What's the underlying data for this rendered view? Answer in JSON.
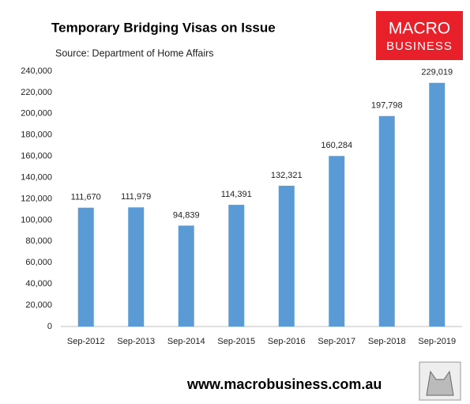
{
  "chart_data": {
    "type": "bar",
    "title": "Temporary Bridging Visas on Issue",
    "subtitle": "Source: Department of Home Affairs",
    "categories": [
      "Sep-2012",
      "Sep-2013",
      "Sep-2014",
      "Sep-2015",
      "Sep-2016",
      "Sep-2017",
      "Sep-2018",
      "Sep-2019"
    ],
    "values": [
      111670,
      111979,
      94839,
      114391,
      132321,
      160284,
      197798,
      229019
    ],
    "value_labels": [
      "111,670",
      "111,979",
      "94,839",
      "114,391",
      "132,321",
      "160,284",
      "197,798",
      "229,019"
    ],
    "color": "#5b9bd5",
    "ylim": [
      0,
      240000
    ],
    "yticks": [
      0,
      {
        "value": 20000,
        "label": "20,000"
      },
      {
        "value": 40000,
        "label": "40,000"
      },
      {
        "value": 60000,
        "label": "60,000"
      },
      {
        "value": 80000,
        "label": "80,000"
      },
      {
        "value": 100000,
        "label": "100,000"
      },
      {
        "value": 120000,
        "label": "120,000"
      },
      {
        "value": 140000,
        "label": "140,000"
      },
      {
        "value": 160000,
        "label": "160,000"
      },
      {
        "value": 180000,
        "label": "180,000"
      },
      {
        "value": 200000,
        "label": "200,000"
      },
      {
        "value": 220000,
        "label": "220,000"
      },
      {
        "value": 240000,
        "label": "240,000"
      }
    ],
    "grid": false
  },
  "logo": {
    "line1": "MACRO",
    "line2": "BUSINESS"
  },
  "footer": "www.macrobusiness.com.au"
}
